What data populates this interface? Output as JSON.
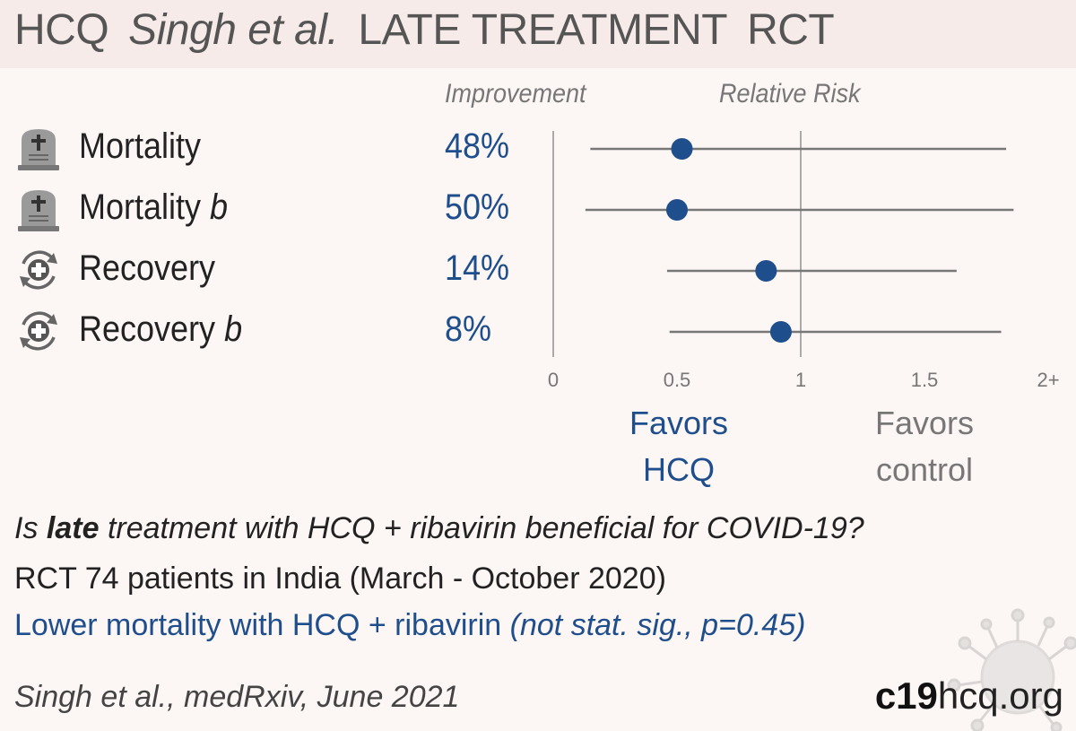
{
  "header": {
    "drug": "HCQ",
    "author": "Singh et al.",
    "stage": "LATE TREATMENT",
    "type": "RCT",
    "bg_color": "#f6ebe8"
  },
  "columns": {
    "improvement": "Improvement",
    "relative_risk": "Relative Risk"
  },
  "rows": [
    {
      "icon": "tombstone-icon",
      "label": "Mortality",
      "suffix": "",
      "improvement": "48%"
    },
    {
      "icon": "tombstone-icon",
      "label": "Mortality",
      "suffix": "b",
      "improvement": "50%"
    },
    {
      "icon": "recovery-icon",
      "label": "Recovery",
      "suffix": "",
      "improvement": "14%"
    },
    {
      "icon": "recovery-icon",
      "label": "Recovery",
      "suffix": "b",
      "improvement": "8%"
    }
  ],
  "chart_data": {
    "type": "scatter",
    "categories": [
      "Mortality",
      "Mortality b",
      "Recovery",
      "Recovery b"
    ],
    "series": [
      {
        "values": [
          0.52,
          0.5,
          0.86,
          0.92
        ],
        "ci_low": [
          0.15,
          0.13,
          0.46,
          0.47
        ],
        "ci_high": [
          1.83,
          1.86,
          1.63,
          1.81
        ]
      }
    ],
    "xlim": [
      0,
      2
    ],
    "xticks": [
      "0",
      "0.5",
      "1",
      "1.5",
      "2+"
    ],
    "reference_line": 1,
    "colors": {
      "point": "#1f4e8c",
      "line": "#777777",
      "axis": "#aaaaaa",
      "tick_text": "#777777"
    }
  },
  "favors": {
    "left": "Favors\nHCQ",
    "right": "Favors\ncontrol"
  },
  "footer": {
    "question_pre": "Is ",
    "question_bold": "late",
    "question_post": " treatment with HCQ + ribavirin beneficial for COVID-19?",
    "description": "RCT 74 patients in India (March - October 2020)",
    "result_main": "Lower mortality with HCQ + ribavirin ",
    "result_detail": "(not stat. sig., p=0.45)",
    "citation": "Singh et al., medRxiv, June 2021",
    "brand_bold": "c19",
    "brand_rest": "hcq.org",
    "accent_color": "#1f4e8c"
  }
}
